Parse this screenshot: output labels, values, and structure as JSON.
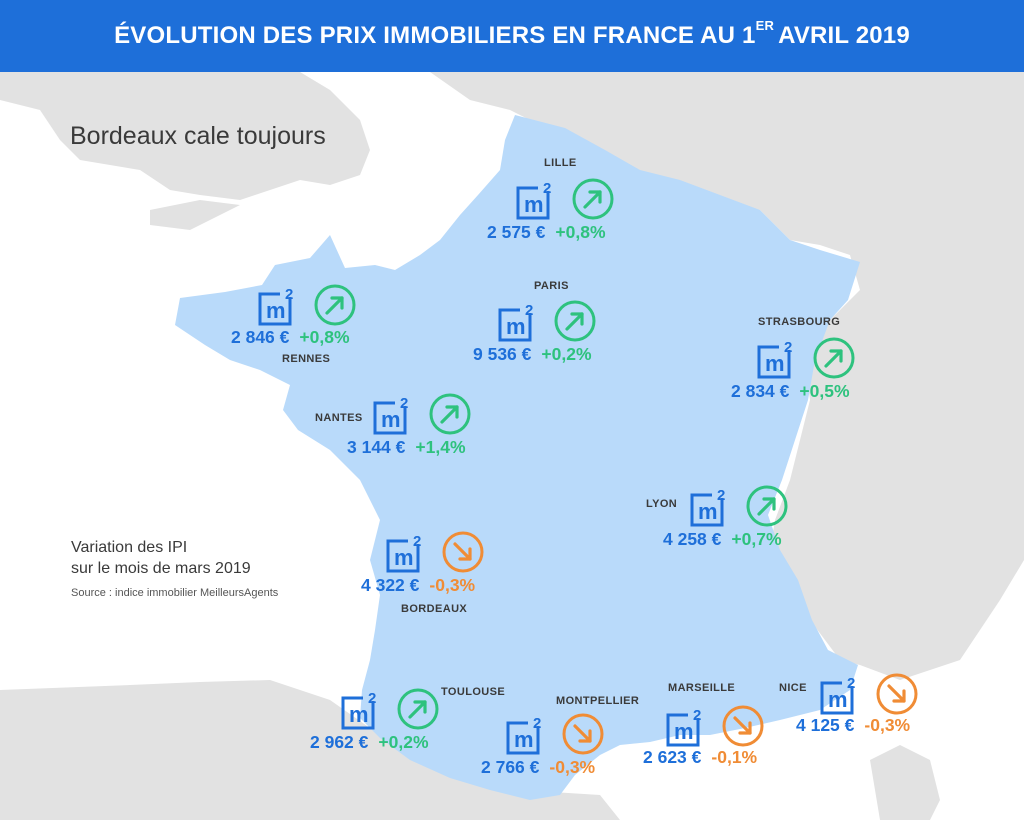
{
  "header": {
    "title_main": "ÉVOLUTION DES PRIX IMMOBILIERS EN FRANCE AU 1",
    "title_sup": "ER",
    "title_end": "AVRIL 2019"
  },
  "subtitle": "Bordeaux cale toujours",
  "legend": {
    "line1": "Variation des IPI",
    "line2": "sur le mois de mars 2019",
    "source": "Source : indice immobilier MeilleursAgents"
  },
  "colors": {
    "header_bg": "#1e6fd9",
    "france": "#b9dafa",
    "neighbors": "#e2e2e2",
    "sea": "#ffffff",
    "price_blue": "#1e6fd9",
    "up_green": "#2ec27e",
    "down_orange": "#f08c35"
  },
  "icons": {
    "unit": "m2-icon",
    "up": "arrow-up-right-icon",
    "down": "arrow-down-right-icon"
  },
  "cities": [
    {
      "name": "LILLE",
      "price": "2 575 €",
      "change": "+0,8%",
      "trend": "up"
    },
    {
      "name": "RENNES",
      "price": "2 846 €",
      "change": "+0,8%",
      "trend": "up"
    },
    {
      "name": "PARIS",
      "price": "9 536 €",
      "change": "+0,2%",
      "trend": "up"
    },
    {
      "name": "STRASBOURG",
      "price": "2 834 €",
      "change": "+0,5%",
      "trend": "up"
    },
    {
      "name": "NANTES",
      "price": "3 144 €",
      "change": "+1,4%",
      "trend": "up"
    },
    {
      "name": "LYON",
      "price": "4 258 €",
      "change": "+0,7%",
      "trend": "up"
    },
    {
      "name": "BORDEAUX",
      "price": "4 322 €",
      "change": "-0,3%",
      "trend": "down"
    },
    {
      "name": "TOULOUSE",
      "price": "2 962 €",
      "change": "+0,2%",
      "trend": "up"
    },
    {
      "name": "MONTPELLIER",
      "price": "2 766 €",
      "change": "-0,3%",
      "trend": "down"
    },
    {
      "name": "MARSEILLE",
      "price": "2 623 €",
      "change": "-0,1%",
      "trend": "down"
    },
    {
      "name": "NICE",
      "price": "4 125 €",
      "change": "-0,3%",
      "trend": "down"
    }
  ]
}
